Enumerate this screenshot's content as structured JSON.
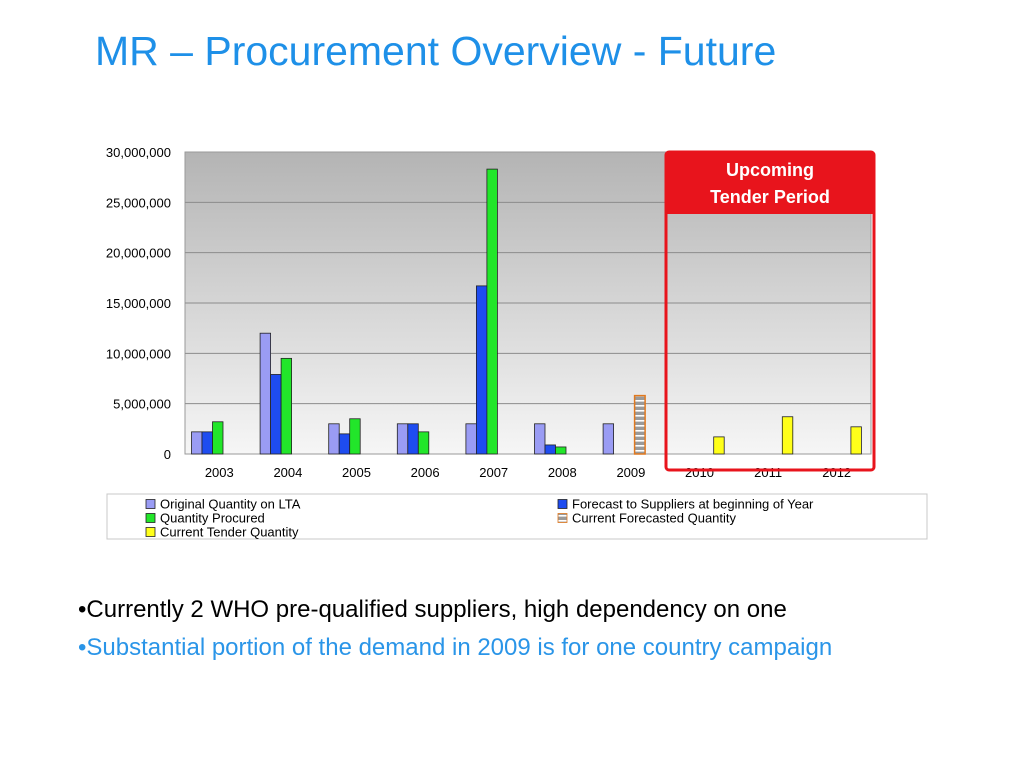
{
  "slide": {
    "title": "MR – Procurement Overview - Future",
    "bullets": [
      "•Currently 2 WHO pre-qualified suppliers, high dependency on one",
      "•Substantial portion of the demand in 2009 is for one country campaign"
    ]
  },
  "callout": {
    "line1": "Upcoming",
    "line2": "Tender Period",
    "color": "#e8141c"
  },
  "chart_data": {
    "type": "bar",
    "categories": [
      "2003",
      "2004",
      "2005",
      "2006",
      "2007",
      "2008",
      "2009",
      "2010",
      "2011",
      "2012"
    ],
    "ylim": [
      0,
      30000000
    ],
    "yticks": [
      "0",
      "5,000,000",
      "10,000,000",
      "15,000,000",
      "20,000,000",
      "25,000,000",
      "30,000,000"
    ],
    "ytick_values": [
      0,
      5000000,
      10000000,
      15000000,
      20000000,
      25000000,
      30000000
    ],
    "grid": true,
    "legend_position": "bottom",
    "series": [
      {
        "name": "Original Quantity on LTA",
        "color": "#9a9cf4",
        "values": [
          2200000,
          12000000,
          3000000,
          3000000,
          3000000,
          3000000,
          3000000,
          null,
          null,
          null
        ]
      },
      {
        "name": "Forecast to Suppliers at beginning of Year",
        "color": "#1e4cf0",
        "values": [
          2200000,
          7900000,
          2000000,
          3000000,
          16700000,
          900000,
          null,
          null,
          null,
          null
        ]
      },
      {
        "name": "Quantity Procured",
        "color": "#22e62a",
        "values": [
          3200000,
          9500000,
          3500000,
          2200000,
          28300000,
          700000,
          null,
          null,
          null,
          null
        ]
      },
      {
        "name": "Current Forecasted Quantity",
        "color": "#b07850",
        "values": [
          null,
          null,
          null,
          null,
          null,
          null,
          5800000,
          null,
          null,
          null
        ]
      },
      {
        "name": "Current Tender Quantity",
        "color": "#ffff1a",
        "values": [
          null,
          null,
          null,
          null,
          null,
          null,
          null,
          1700000,
          3700000,
          2700000
        ]
      }
    ]
  }
}
